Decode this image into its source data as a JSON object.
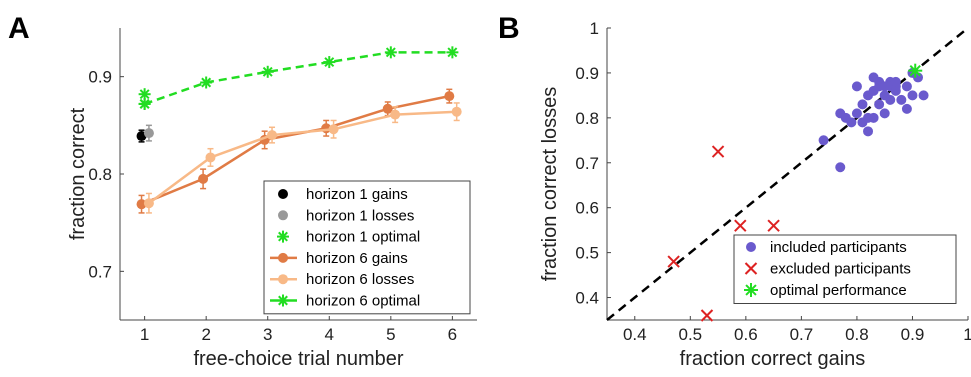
{
  "chart_data": [
    {
      "panel": "A",
      "type": "line",
      "xlabel": "free-choice trial number",
      "ylabel": "fraction correct",
      "xlim": [
        0.6,
        6.4
      ],
      "ylim": [
        0.65,
        0.95
      ],
      "xticks": [
        1,
        2,
        3,
        4,
        5,
        6
      ],
      "yticks": [
        0.7,
        0.8,
        0.9
      ],
      "legend_position": "bottom-right",
      "series": [
        {
          "name": "horizon 1 gains",
          "color": "#000000",
          "style": "point",
          "x": [
            0.95
          ],
          "y": [
            0.839
          ],
          "err": [
            0.006
          ]
        },
        {
          "name": "horizon 1 losses",
          "color": "#999999",
          "style": "point",
          "x": [
            1.07
          ],
          "y": [
            0.842
          ],
          "err": [
            0.008
          ]
        },
        {
          "name": "horizon 1 optimal",
          "color": "#22dd22",
          "style": "star",
          "x": [
            1,
            1
          ],
          "y": [
            0.872,
            0.882
          ]
        },
        {
          "name": "horizon 6 gains",
          "color": "#e07b45",
          "style": "line",
          "x": [
            0.95,
            1.95,
            2.95,
            3.95,
            4.95,
            5.95
          ],
          "y": [
            0.769,
            0.795,
            0.835,
            0.847,
            0.867,
            0.88
          ],
          "err": [
            0.009,
            0.01,
            0.009,
            0.008,
            0.007,
            0.007
          ]
        },
        {
          "name": "horizon 6 losses",
          "color": "#f8b987",
          "style": "line",
          "x": [
            1.07,
            2.07,
            3.07,
            4.07,
            5.07,
            6.07
          ],
          "y": [
            0.77,
            0.817,
            0.84,
            0.846,
            0.861,
            0.864
          ],
          "err": [
            0.01,
            0.009,
            0.008,
            0.009,
            0.008,
            0.009
          ]
        },
        {
          "name": "horizon 6 optimal",
          "color": "#22dd22",
          "style": "dashed-star",
          "x": [
            1,
            2,
            3,
            4,
            5,
            6
          ],
          "y": [
            0.872,
            0.894,
            0.905,
            0.915,
            0.925,
            0.925
          ]
        }
      ]
    },
    {
      "panel": "B",
      "type": "scatter",
      "xlabel": "fraction correct gains",
      "ylabel": "fraction correct losses",
      "xlim": [
        0.35,
        1
      ],
      "ylim": [
        0.35,
        1
      ],
      "xticks": [
        0.4,
        0.5,
        0.6,
        0.7,
        0.8,
        0.9,
        1
      ],
      "xtick_labels": [
        "0.4",
        "0.5",
        "0.6",
        "0.7",
        "0.8",
        "0.9",
        "1"
      ],
      "yticks": [
        0.4,
        0.5,
        0.6,
        0.7,
        0.8,
        0.9,
        1
      ],
      "ytick_labels": [
        "0.4",
        "0.5",
        "0.6",
        "0.7",
        "0.8",
        "0.9",
        "1"
      ],
      "identity_line": true,
      "legend_position": "bottom-right",
      "series": [
        {
          "name": "included participants",
          "color": "#6a5acd",
          "marker": "circle",
          "points": [
            [
              0.74,
              0.75
            ],
            [
              0.77,
              0.69
            ],
            [
              0.77,
              0.81
            ],
            [
              0.78,
              0.8
            ],
            [
              0.79,
              0.79
            ],
            [
              0.8,
              0.87
            ],
            [
              0.8,
              0.81
            ],
            [
              0.81,
              0.79
            ],
            [
              0.81,
              0.83
            ],
            [
              0.82,
              0.8
            ],
            [
              0.82,
              0.77
            ],
            [
              0.82,
              0.85
            ],
            [
              0.83,
              0.89
            ],
            [
              0.83,
              0.86
            ],
            [
              0.84,
              0.88
            ],
            [
              0.84,
              0.83
            ],
            [
              0.84,
              0.87
            ],
            [
              0.85,
              0.81
            ],
            [
              0.85,
              0.85
            ],
            [
              0.85,
              0.87
            ],
            [
              0.86,
              0.88
            ],
            [
              0.86,
              0.84
            ],
            [
              0.86,
              0.87
            ],
            [
              0.87,
              0.86
            ],
            [
              0.87,
              0.87
            ],
            [
              0.88,
              0.84
            ],
            [
              0.89,
              0.87
            ],
            [
              0.89,
              0.82
            ],
            [
              0.9,
              0.85
            ],
            [
              0.9,
              0.9
            ],
            [
              0.91,
              0.89
            ],
            [
              0.92,
              0.85
            ],
            [
              0.83,
              0.8
            ],
            [
              0.87,
              0.88
            ]
          ]
        },
        {
          "name": "excluded participants",
          "color": "#dd2222",
          "marker": "x",
          "points": [
            [
              0.47,
              0.48
            ],
            [
              0.53,
              0.36
            ],
            [
              0.55,
              0.725
            ],
            [
              0.59,
              0.56
            ],
            [
              0.65,
              0.56
            ]
          ]
        },
        {
          "name": "optimal performance",
          "color": "#22dd22",
          "marker": "star",
          "points": [
            [
              0.905,
              0.905
            ]
          ]
        }
      ]
    }
  ],
  "panels": {
    "a_letter": "A",
    "b_letter": "B"
  }
}
